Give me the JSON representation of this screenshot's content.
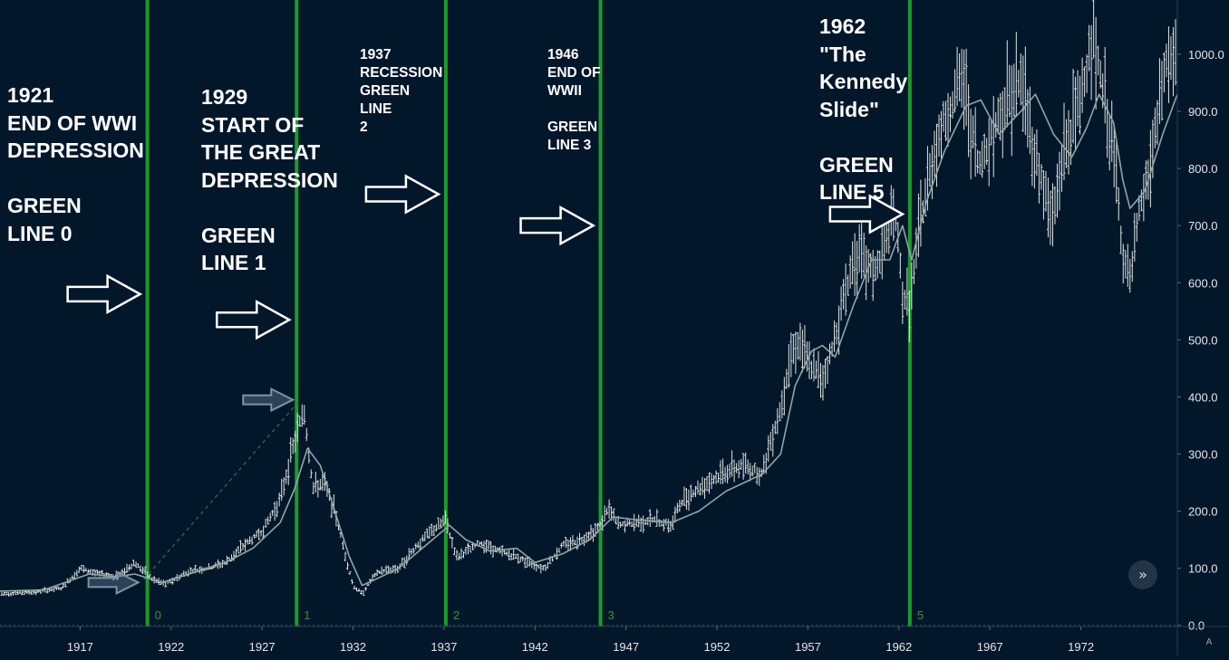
{
  "colors": {
    "background": "#03172b",
    "vertical_line": "#1e9a2b",
    "vertical_label": "#2c9a38",
    "price_bars": "#dfe5e2",
    "moving_average": "#8fa7a4",
    "axis_text": "#e3e7ea",
    "arrow_white": "#ffffff",
    "arrow_grey": "#8093a6",
    "trendline": "#3f6b4c"
  },
  "annotations": [
    {
      "id": "green-line-0-note",
      "size": "big",
      "text": "1921\nEND OF WWI\nDEPRESSION\n\nGREEN\nLINE 0"
    },
    {
      "id": "green-line-1-note",
      "size": "big",
      "text": "1929\nSTART OF\nTHE GREAT\nDEPRESSION\n\nGREEN\nLINE 1"
    },
    {
      "id": "green-line-2-note",
      "size": "small",
      "text": "1937\nRECESSION\nGREEN\nLINE\n2"
    },
    {
      "id": "green-line-3-note",
      "size": "small",
      "text": "1946\nEND OF\nWWII\n\nGREEN\nLINE 3"
    },
    {
      "id": "green-line-5-note",
      "size": "big",
      "text": "1962\n\"The\nKennedy\nSlide\"\n\nGREEN\nLINE 5"
    }
  ],
  "buttons": {
    "scroll_to_latest_icon": "double-chevron-right-icon",
    "scroll_to_latest_glyph": "»",
    "auto_scale_label": "A"
  },
  "chart_data": {
    "type": "bar",
    "subtype": "ohlc price chart with moving average",
    "x_unit": "year",
    "xlim": [
      1912.6,
      1977.3
    ],
    "ylim": [
      -2,
      1095
    ],
    "y_axis_position": "right",
    "y_ticks": [
      "0.0",
      "100.0",
      "200.0",
      "300.0",
      "400.0",
      "500.0",
      "600.0",
      "700.0",
      "800.0",
      "900.0",
      "1000.0"
    ],
    "y_tick_values": [
      0,
      100,
      200,
      300,
      400,
      500,
      600,
      700,
      800,
      900,
      1000
    ],
    "x_ticks": [
      "1917",
      "1922",
      "1927",
      "1932",
      "1937",
      "1942",
      "1947",
      "1952",
      "1957",
      "1962",
      "1967",
      "1972"
    ],
    "x_tick_values": [
      1917,
      1922,
      1927,
      1932,
      1937,
      1942,
      1947,
      1952,
      1957,
      1962,
      1967,
      1972
    ],
    "vertical_lines": [
      {
        "label": "0",
        "x": 1920.7
      },
      {
        "label": "1",
        "x": 1928.9
      },
      {
        "label": "2",
        "x": 1937.1
      },
      {
        "label": "3",
        "x": 1945.6
      },
      {
        "label": "5",
        "x": 1962.6
      }
    ],
    "price_series": {
      "x": [
        1912.6,
        1914.5,
        1916.0,
        1917.0,
        1918.0,
        1919.0,
        1920.0,
        1921.0,
        1921.7,
        1923.0,
        1924.0,
        1925.0,
        1926.0,
        1927.0,
        1928.0,
        1928.6,
        1929.3,
        1929.8,
        1930.4,
        1931.0,
        1931.6,
        1932.0,
        1932.5,
        1933.0,
        1933.5,
        1934.5,
        1935.5,
        1936.5,
        1937.1,
        1937.4,
        1937.7,
        1938.3,
        1939.0,
        1940.0,
        1941.0,
        1942.0,
        1942.5,
        1943.5,
        1944.5,
        1945.5,
        1946.0,
        1946.6,
        1947.5,
        1948.5,
        1949.5,
        1950.0,
        1950.5,
        1951.5,
        1952.5,
        1953.5,
        1954.5,
        1955.0,
        1955.5,
        1956.0,
        1956.5,
        1957.0,
        1957.8,
        1958.3,
        1959.0,
        1959.6,
        1960.4,
        1960.9,
        1961.5,
        1961.8,
        1962.2,
        1962.6,
        1963.2,
        1964.0,
        1964.7,
        1965.5,
        1965.9,
        1966.4,
        1966.8,
        1967.5,
        1968.2,
        1968.8,
        1969.3,
        1970.0,
        1970.4,
        1971.0,
        1971.8,
        1972.3,
        1972.7,
        1973.3,
        1973.9,
        1974.3,
        1974.7,
        1975.2,
        1975.8,
        1976.3,
        1976.6,
        1977.3
      ],
      "y": [
        55,
        58,
        65,
        100,
        90,
        85,
        110,
        80,
        72,
        95,
        100,
        110,
        140,
        165,
        220,
        300,
        380,
        240,
        250,
        200,
        120,
        70,
        55,
        80,
        95,
        100,
        140,
        170,
        185,
        150,
        120,
        130,
        145,
        130,
        120,
        105,
        100,
        140,
        150,
        170,
        205,
        175,
        180,
        185,
        175,
        215,
        230,
        250,
        270,
        280,
        265,
        330,
        380,
        470,
        500,
        460,
        430,
        480,
        580,
        650,
        620,
        630,
        700,
        720,
        580,
        560,
        710,
        840,
        900,
        960,
        880,
        800,
        840,
        890,
        940,
        950,
        850,
        760,
        700,
        820,
        900,
        980,
        1020,
        920,
        800,
        650,
        600,
        720,
        800,
        900,
        980,
        1000
      ]
    },
    "moving_average": {
      "x": [
        1912.6,
        1915.0,
        1917.5,
        1919.0,
        1920.0,
        1921.5,
        1923.0,
        1925.0,
        1926.5,
        1928.0,
        1928.8,
        1929.5,
        1930.2,
        1931.0,
        1931.8,
        1932.5,
        1933.2,
        1934.5,
        1936.0,
        1937.3,
        1938.2,
        1939.5,
        1941.0,
        1942.0,
        1943.5,
        1945.0,
        1946.3,
        1947.5,
        1949.5,
        1951.0,
        1952.5,
        1954.5,
        1955.5,
        1956.3,
        1957.2,
        1957.8,
        1958.5,
        1959.5,
        1960.5,
        1961.5,
        1962.2,
        1962.7,
        1963.5,
        1964.5,
        1965.7,
        1966.5,
        1967.5,
        1968.7,
        1969.5,
        1970.5,
        1971.5,
        1972.3,
        1973.0,
        1973.8,
        1974.3,
        1974.7,
        1975.5,
        1976.5,
        1977.3
      ],
      "y": [
        60,
        62,
        90,
        85,
        90,
        75,
        90,
        110,
        135,
        180,
        240,
        310,
        280,
        200,
        120,
        70,
        80,
        100,
        140,
        175,
        150,
        130,
        135,
        110,
        125,
        150,
        190,
        185,
        180,
        200,
        235,
        265,
        300,
        420,
        480,
        490,
        470,
        560,
        640,
        640,
        700,
        640,
        740,
        830,
        910,
        920,
        860,
        900,
        930,
        860,
        820,
        870,
        930,
        880,
        780,
        730,
        760,
        860,
        930
      ]
    },
    "annotation_arrows": [
      {
        "style": "white",
        "x": 1920.7,
        "y": 580
      },
      {
        "style": "white",
        "x": 1928.9,
        "y": 535
      },
      {
        "style": "white",
        "x": 1937.1,
        "y": 755
      },
      {
        "style": "white",
        "x": 1945.6,
        "y": 700
      },
      {
        "style": "white",
        "x": 1962.6,
        "y": 720
      },
      {
        "style": "grey",
        "x": 1920.6,
        "y": 75
      },
      {
        "style": "grey",
        "x": 1929.1,
        "y": 395
      }
    ],
    "trendline": {
      "style": "dashed",
      "from": [
        1920.5,
        80
      ],
      "to": [
        1929.1,
        395
      ]
    }
  }
}
